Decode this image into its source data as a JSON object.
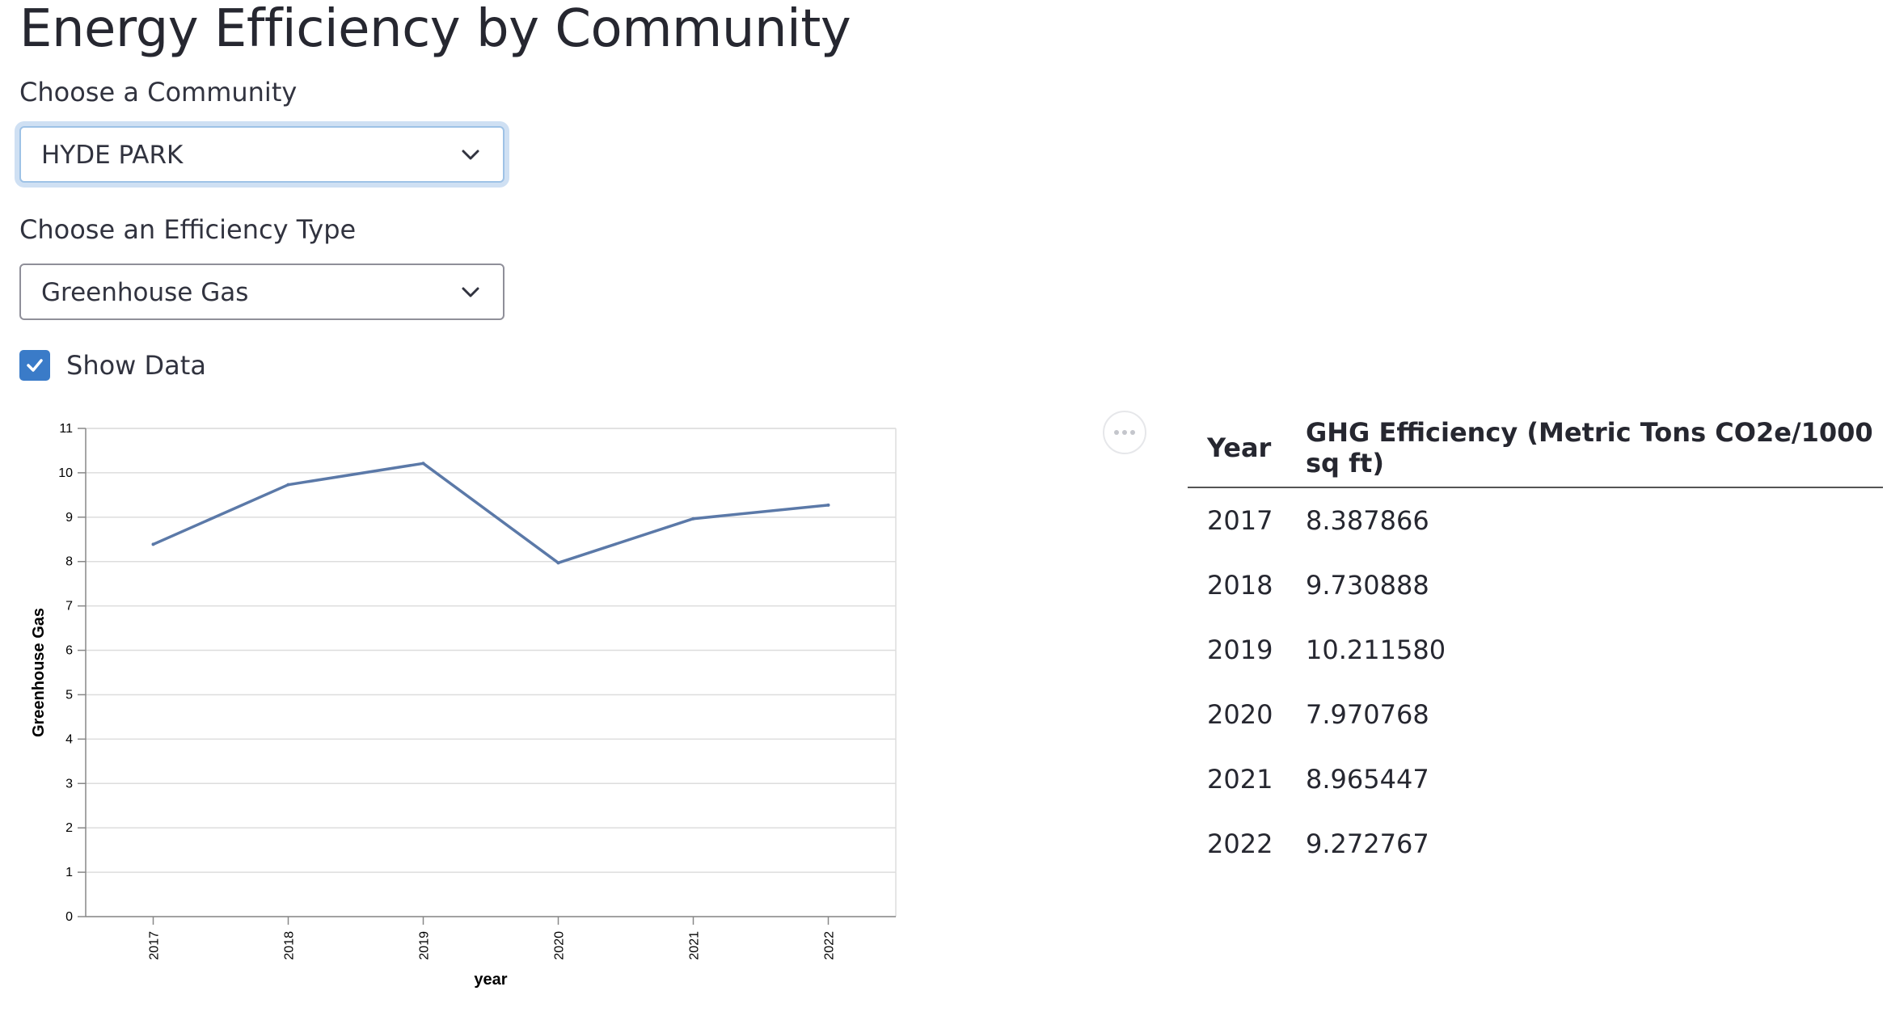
{
  "page": {
    "title": "Energy Efficiency by Community"
  },
  "community_select": {
    "label": "Choose a Community",
    "value": "HYDE PARK"
  },
  "efficiency_select": {
    "label": "Choose an Efficiency Type",
    "value": "Greenhouse Gas"
  },
  "show_data": {
    "label": "Show Data",
    "checked": true
  },
  "icons": {
    "dropdown": "chevron-down-icon",
    "checkbox": "checkmark-icon",
    "menu": "more-horizontal-icon"
  },
  "colors": {
    "line": "#5b79a8",
    "checkbox": "#3a7bc8",
    "focus_ring": "#cfe0f3"
  },
  "chart_data": {
    "type": "line",
    "xlabel": "year",
    "ylabel": "Greenhouse Gas",
    "x": [
      "2017",
      "2018",
      "2019",
      "2020",
      "2021",
      "2022"
    ],
    "values": [
      8.387866,
      9.730888,
      10.21158,
      7.970768,
      8.965447,
      9.272767
    ],
    "ylim": [
      0,
      11
    ],
    "yticks": [
      "0",
      "1",
      "2",
      "3",
      "4",
      "5",
      "6",
      "7",
      "8",
      "9",
      "10",
      "11"
    ],
    "grid": true
  },
  "table": {
    "headers": [
      "Year",
      "GHG Efficiency (Metric Tons CO2e/1000 sq ft)"
    ],
    "rows": [
      [
        "2017",
        "8.387866"
      ],
      [
        "2018",
        "9.730888"
      ],
      [
        "2019",
        "10.211580"
      ],
      [
        "2020",
        "7.970768"
      ],
      [
        "2021",
        "8.965447"
      ],
      [
        "2022",
        "9.272767"
      ]
    ]
  }
}
